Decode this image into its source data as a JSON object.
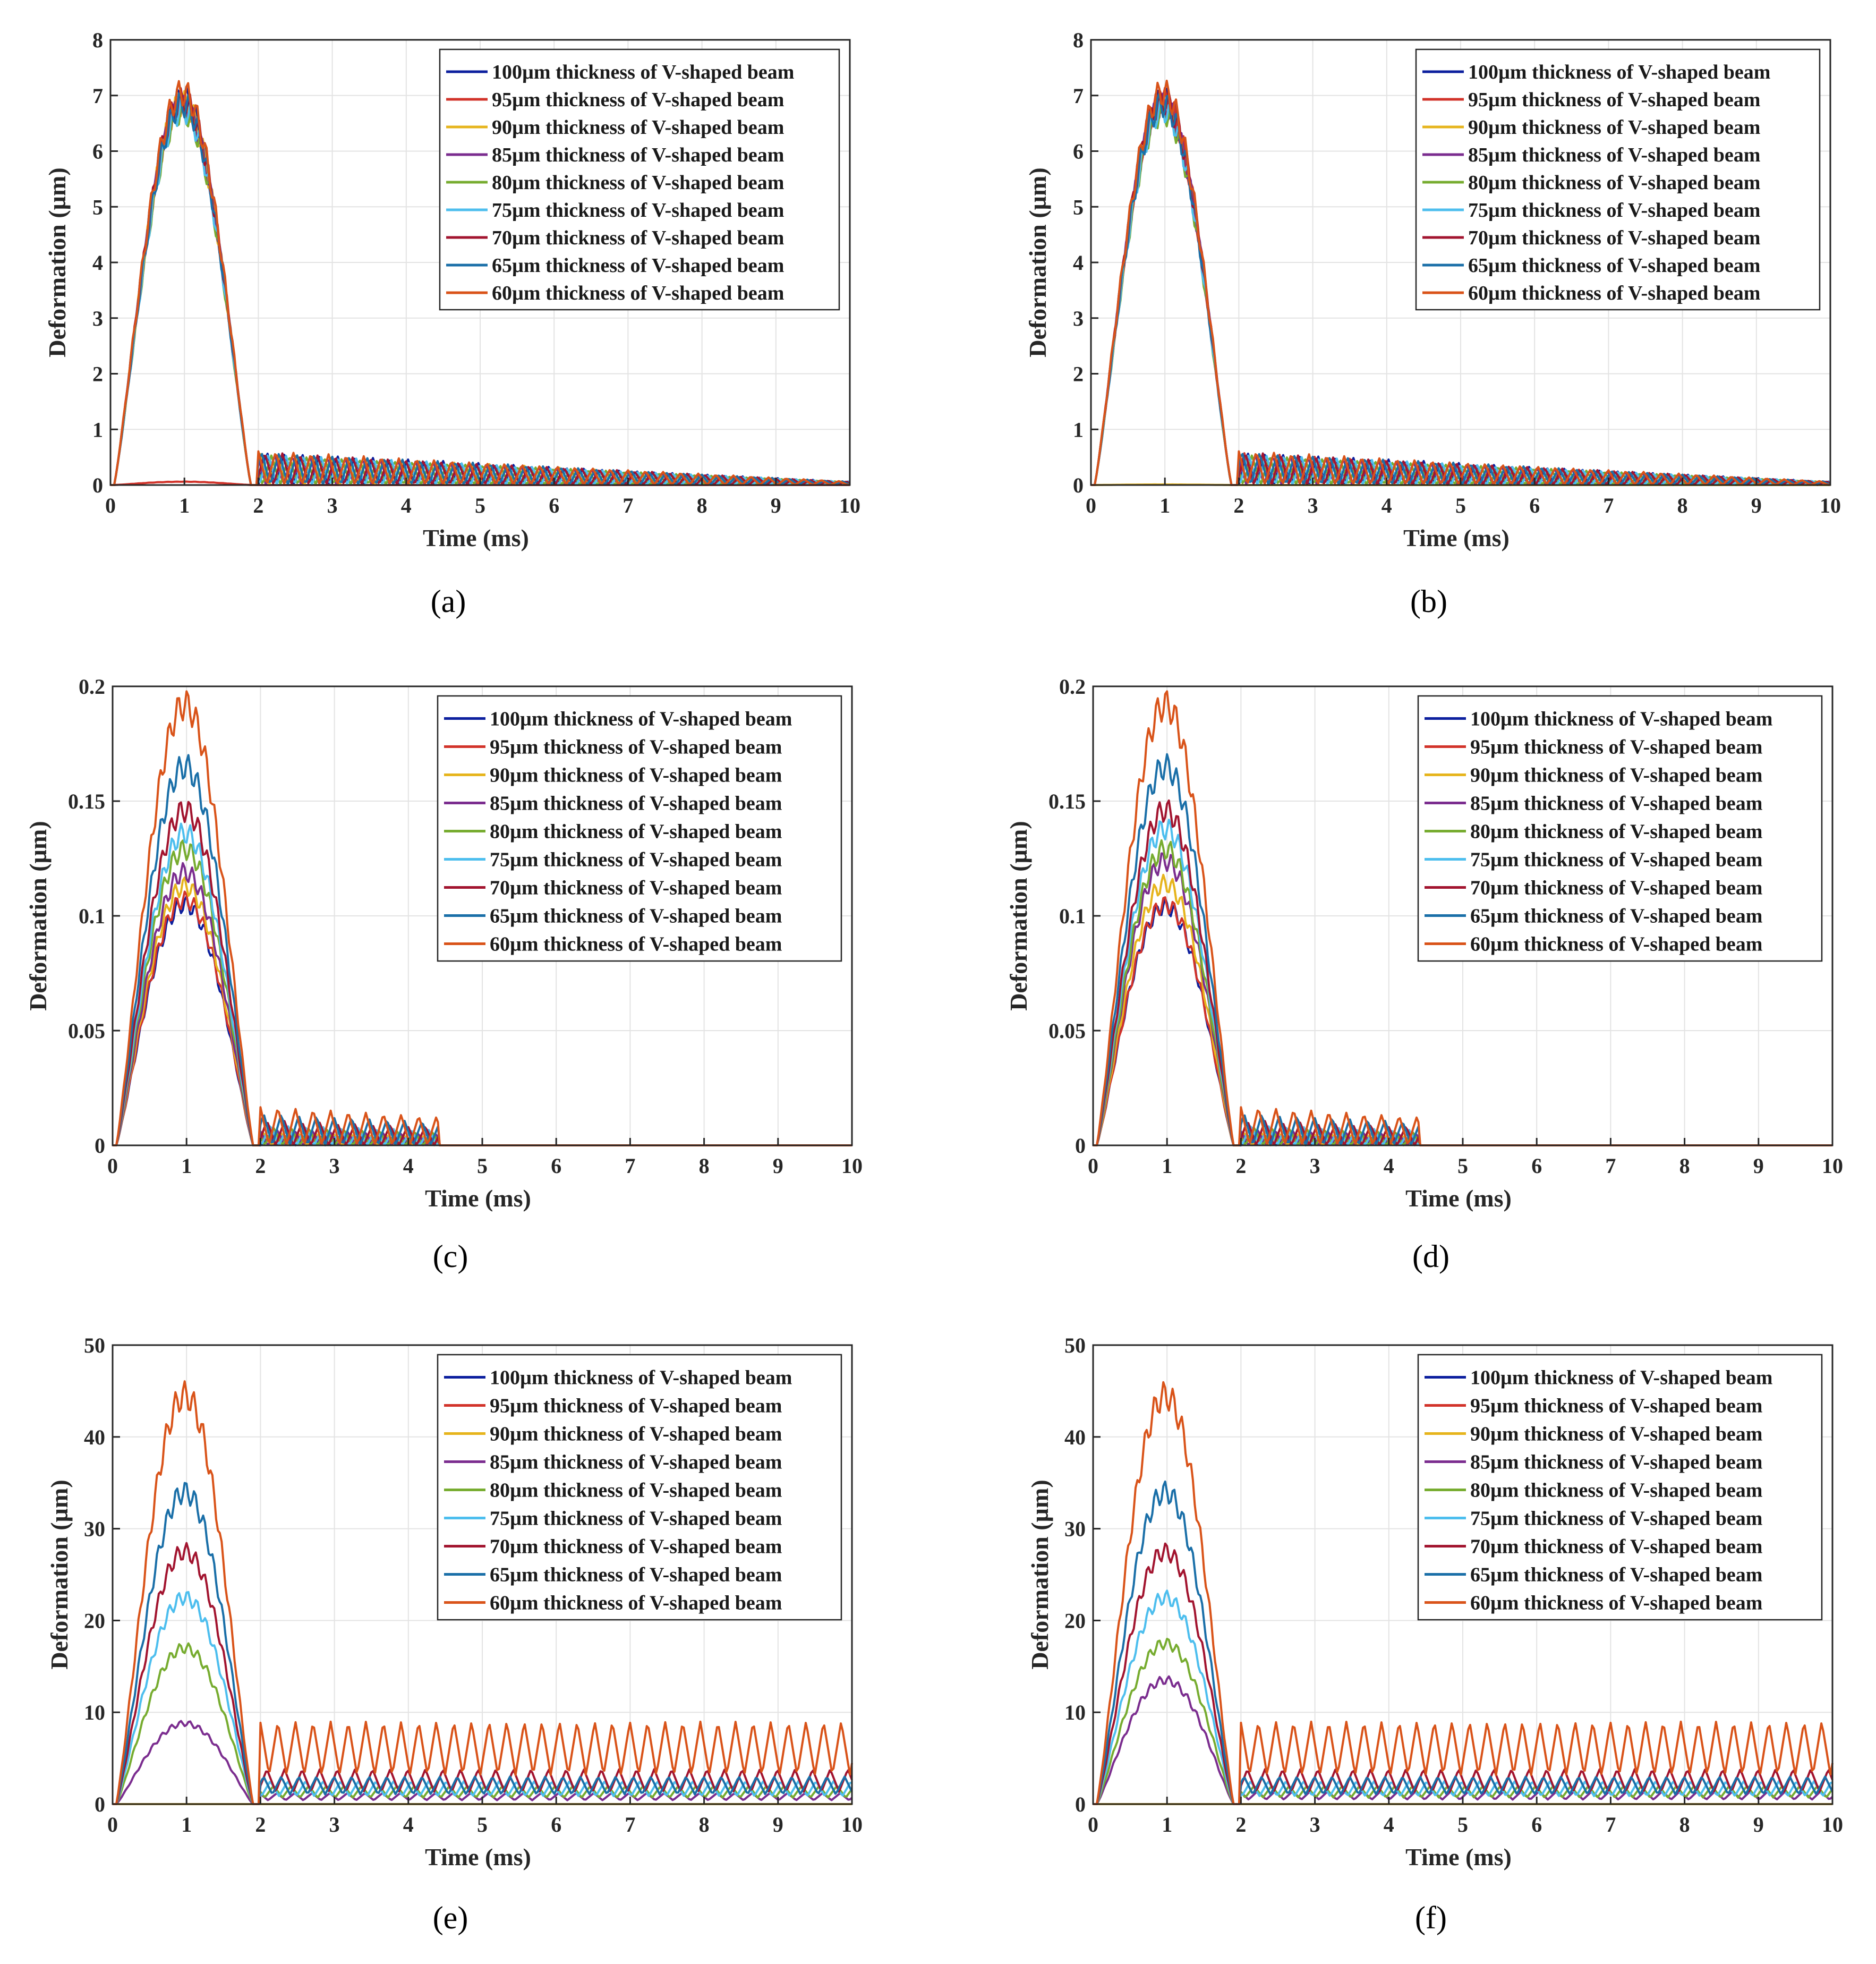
{
  "figure": {
    "captions": [
      "(a)",
      "(b)",
      "(c)",
      "(d)",
      "(e)",
      "(f)"
    ]
  },
  "series_colors": [
    "#0c1f9e",
    "#d2332a",
    "#e6b41c",
    "#7b2d8f",
    "#77ac30",
    "#4dbeee",
    "#a2142f",
    "#1a6fa8",
    "#d95319"
  ],
  "chart_data": [
    {
      "type": "line",
      "panel": "a",
      "title": "",
      "caption": "(a)",
      "xlabel": "Time (ms)",
      "ylabel": "Deformation (µm)",
      "xlim": [
        0,
        10
      ],
      "ylim": [
        0,
        8
      ],
      "grid": true,
      "legend_position": "top-right",
      "xticks": [
        "0",
        "1",
        "2",
        "3",
        "4",
        "5",
        "6",
        "7",
        "8",
        "9",
        "10"
      ],
      "yticks": [
        "0",
        "1",
        "2",
        "3",
        "4",
        "5",
        "6",
        "7",
        "8"
      ],
      "series": [
        {
          "name": "100µm thickness of V-shaped beam",
          "peak": 6.95,
          "tail": 0.6
        },
        {
          "name": "95µm thickness of V-shaped beam",
          "peak": 0.06,
          "tail": 0.0
        },
        {
          "name": "90µm thickness of V-shaped beam",
          "peak": 6.85,
          "tail": 0.58
        },
        {
          "name": "85µm thickness of V-shaped beam",
          "peak": 6.8,
          "tail": 0.56
        },
        {
          "name": "80µm thickness of V-shaped beam",
          "peak": 6.7,
          "tail": 0.55
        },
        {
          "name": "75µm thickness of V-shaped beam",
          "peak": 6.75,
          "tail": 0.57
        },
        {
          "name": "70µm thickness of V-shaped beam",
          "peak": 6.9,
          "tail": 0.59
        },
        {
          "name": "65µm thickness of V-shaped beam",
          "peak": 6.85,
          "tail": 0.6
        },
        {
          "name": "60µm thickness of V-shaped beam",
          "peak": 7.05,
          "tail": 0.62
        }
      ]
    },
    {
      "type": "line",
      "panel": "b",
      "title": "",
      "caption": "(b)",
      "xlabel": "Time (ms)",
      "ylabel": "Deformation (µm)",
      "xlim": [
        0,
        10
      ],
      "ylim": [
        0,
        8
      ],
      "grid": true,
      "legend_position": "top-right",
      "xticks": [
        "0",
        "1",
        "2",
        "3",
        "4",
        "5",
        "6",
        "7",
        "8",
        "9",
        "10"
      ],
      "yticks": [
        "0",
        "1",
        "2",
        "3",
        "4",
        "5",
        "6",
        "7",
        "8"
      ],
      "series": [
        {
          "name": "100µm thickness of V-shaped beam",
          "peak": 6.95,
          "tail": 0.6
        },
        {
          "name": "95µm thickness of V-shaped beam",
          "peak": 6.9,
          "tail": 0.58
        },
        {
          "name": "90µm thickness of V-shaped beam",
          "peak": 0.01,
          "tail": 0.0
        },
        {
          "name": "85µm thickness of V-shaped beam",
          "peak": 6.8,
          "tail": 0.56
        },
        {
          "name": "80µm thickness of V-shaped beam",
          "peak": 6.7,
          "tail": 0.55
        },
        {
          "name": "75µm thickness of V-shaped beam",
          "peak": 6.75,
          "tail": 0.57
        },
        {
          "name": "70µm thickness of V-shaped beam",
          "peak": 6.9,
          "tail": 0.59
        },
        {
          "name": "65µm thickness of V-shaped beam",
          "peak": 6.85,
          "tail": 0.6
        },
        {
          "name": "60µm thickness of V-shaped beam",
          "peak": 7.05,
          "tail": 0.62
        }
      ]
    },
    {
      "type": "line",
      "panel": "c",
      "title": "",
      "caption": "(c)",
      "xlabel": "Time (ms)",
      "ylabel": "Deformation (µm)",
      "xlim": [
        0,
        10
      ],
      "ylim": [
        0,
        0.2
      ],
      "grid": true,
      "legend_position": "top-right",
      "xticks": [
        "0",
        "1",
        "2",
        "3",
        "4",
        "5",
        "6",
        "7",
        "8",
        "9",
        "10"
      ],
      "yticks": [
        "0",
        "0.05",
        "0.1",
        "0.15",
        "0.2"
      ],
      "series": [
        {
          "name": "100µm thickness of V-shaped beam",
          "peak": 0.105,
          "tail": 0.004
        },
        {
          "name": "95µm thickness of V-shaped beam",
          "peak": 0.107,
          "tail": 0.005
        },
        {
          "name": "90µm thickness of V-shaped beam",
          "peak": 0.113,
          "tail": 0.006
        },
        {
          "name": "85µm thickness of V-shaped beam",
          "peak": 0.119,
          "tail": 0.007
        },
        {
          "name": "80µm thickness of V-shaped beam",
          "peak": 0.129,
          "tail": 0.008
        },
        {
          "name": "75µm thickness of V-shaped beam",
          "peak": 0.136,
          "tail": 0.009
        },
        {
          "name": "70µm thickness of V-shaped beam",
          "peak": 0.146,
          "tail": 0.011
        },
        {
          "name": "65µm thickness of V-shaped beam",
          "peak": 0.165,
          "tail": 0.014
        },
        {
          "name": "60µm thickness of V-shaped beam",
          "peak": 0.192,
          "tail": 0.017
        }
      ]
    },
    {
      "type": "line",
      "panel": "d",
      "title": "",
      "caption": "(d)",
      "xlabel": "Time (ms)",
      "ylabel": "Deformation (µm)",
      "xlim": [
        0,
        10
      ],
      "ylim": [
        0,
        0.2
      ],
      "grid": true,
      "legend_position": "top-right",
      "xticks": [
        "0",
        "1",
        "2",
        "3",
        "4",
        "5",
        "6",
        "7",
        "8",
        "9",
        "10"
      ],
      "yticks": [
        "0",
        "0.05",
        "0.1",
        "0.15",
        "0.2"
      ],
      "series": [
        {
          "name": "100µm thickness of V-shaped beam",
          "peak": 0.104,
          "tail": 0.004
        },
        {
          "name": "95µm thickness of V-shaped beam",
          "peak": 0.105,
          "tail": 0.005
        },
        {
          "name": "90µm thickness of V-shaped beam",
          "peak": 0.114,
          "tail": 0.006
        },
        {
          "name": "85µm thickness of V-shaped beam",
          "peak": 0.124,
          "tail": 0.007
        },
        {
          "name": "80µm thickness of V-shaped beam",
          "peak": 0.129,
          "tail": 0.008
        },
        {
          "name": "75µm thickness of V-shaped beam",
          "peak": 0.138,
          "tail": 0.009
        },
        {
          "name": "70µm thickness of V-shaped beam",
          "peak": 0.146,
          "tail": 0.011
        },
        {
          "name": "65µm thickness of V-shaped beam",
          "peak": 0.165,
          "tail": 0.014
        },
        {
          "name": "60µm thickness of V-shaped beam",
          "peak": 0.192,
          "tail": 0.017
        }
      ]
    },
    {
      "type": "line",
      "panel": "e",
      "title": "",
      "caption": "(e)",
      "xlabel": "Time (ms)",
      "ylabel": "Deformation (µm)",
      "xlim": [
        0,
        10
      ],
      "ylim": [
        0,
        50
      ],
      "grid": true,
      "legend_position": "top-right",
      "xticks": [
        "0",
        "1",
        "2",
        "3",
        "4",
        "5",
        "6",
        "7",
        "8",
        "9",
        "10"
      ],
      "yticks": [
        "0",
        "10",
        "20",
        "30",
        "40",
        "50"
      ],
      "series": [
        {
          "name": "100µm thickness of V-shaped beam",
          "peak": 0.0,
          "tail": 0.0
        },
        {
          "name": "95µm thickness of V-shaped beam",
          "peak": 0.0,
          "tail": 0.0
        },
        {
          "name": "90µm thickness of V-shaped beam",
          "peak": 0.0,
          "tail": 0.0
        },
        {
          "name": "85µm thickness of V-shaped beam",
          "peak": 8.8,
          "tail": 1.2
        },
        {
          "name": "80µm thickness of V-shaped beam",
          "peak": 17.0,
          "tail": 2.0
        },
        {
          "name": "75µm thickness of V-shaped beam",
          "peak": 22.5,
          "tail": 2.5
        },
        {
          "name": "70µm thickness of V-shaped beam",
          "peak": 27.5,
          "tail": 3.8
        },
        {
          "name": "65µm thickness of V-shaped beam",
          "peak": 34.0,
          "tail": 3.0
        },
        {
          "name": "60µm thickness of V-shaped beam",
          "peak": 44.5,
          "tail": 9.0
        }
      ]
    },
    {
      "type": "line",
      "panel": "f",
      "title": "",
      "caption": "(f)",
      "xlabel": "Time (ms)",
      "ylabel": "Deformation (µm)",
      "xlim": [
        0,
        10
      ],
      "ylim": [
        0,
        50
      ],
      "grid": true,
      "legend_position": "top-right",
      "xticks": [
        "0",
        "1",
        "2",
        "3",
        "4",
        "5",
        "6",
        "7",
        "8",
        "9",
        "10"
      ],
      "yticks": [
        "0",
        "10",
        "20",
        "30",
        "40",
        "50"
      ],
      "series": [
        {
          "name": "100µm thickness of V-shaped beam",
          "peak": 0.0,
          "tail": 0.0
        },
        {
          "name": "95µm thickness of V-shaped beam",
          "peak": 0.0,
          "tail": 0.0
        },
        {
          "name": "90µm thickness of V-shaped beam",
          "peak": 0.0,
          "tail": 0.0
        },
        {
          "name": "85µm thickness of V-shaped beam",
          "peak": 13.5,
          "tail": 1.4
        },
        {
          "name": "80µm thickness of V-shaped beam",
          "peak": 17.5,
          "tail": 2.0
        },
        {
          "name": "75µm thickness of V-shaped beam",
          "peak": 22.5,
          "tail": 2.5
        },
        {
          "name": "70µm thickness of V-shaped beam",
          "peak": 27.5,
          "tail": 3.8
        },
        {
          "name": "65µm thickness of V-shaped beam",
          "peak": 34.0,
          "tail": 3.0
        },
        {
          "name": "60µm thickness of V-shaped beam",
          "peak": 44.5,
          "tail": 9.0
        }
      ]
    }
  ]
}
